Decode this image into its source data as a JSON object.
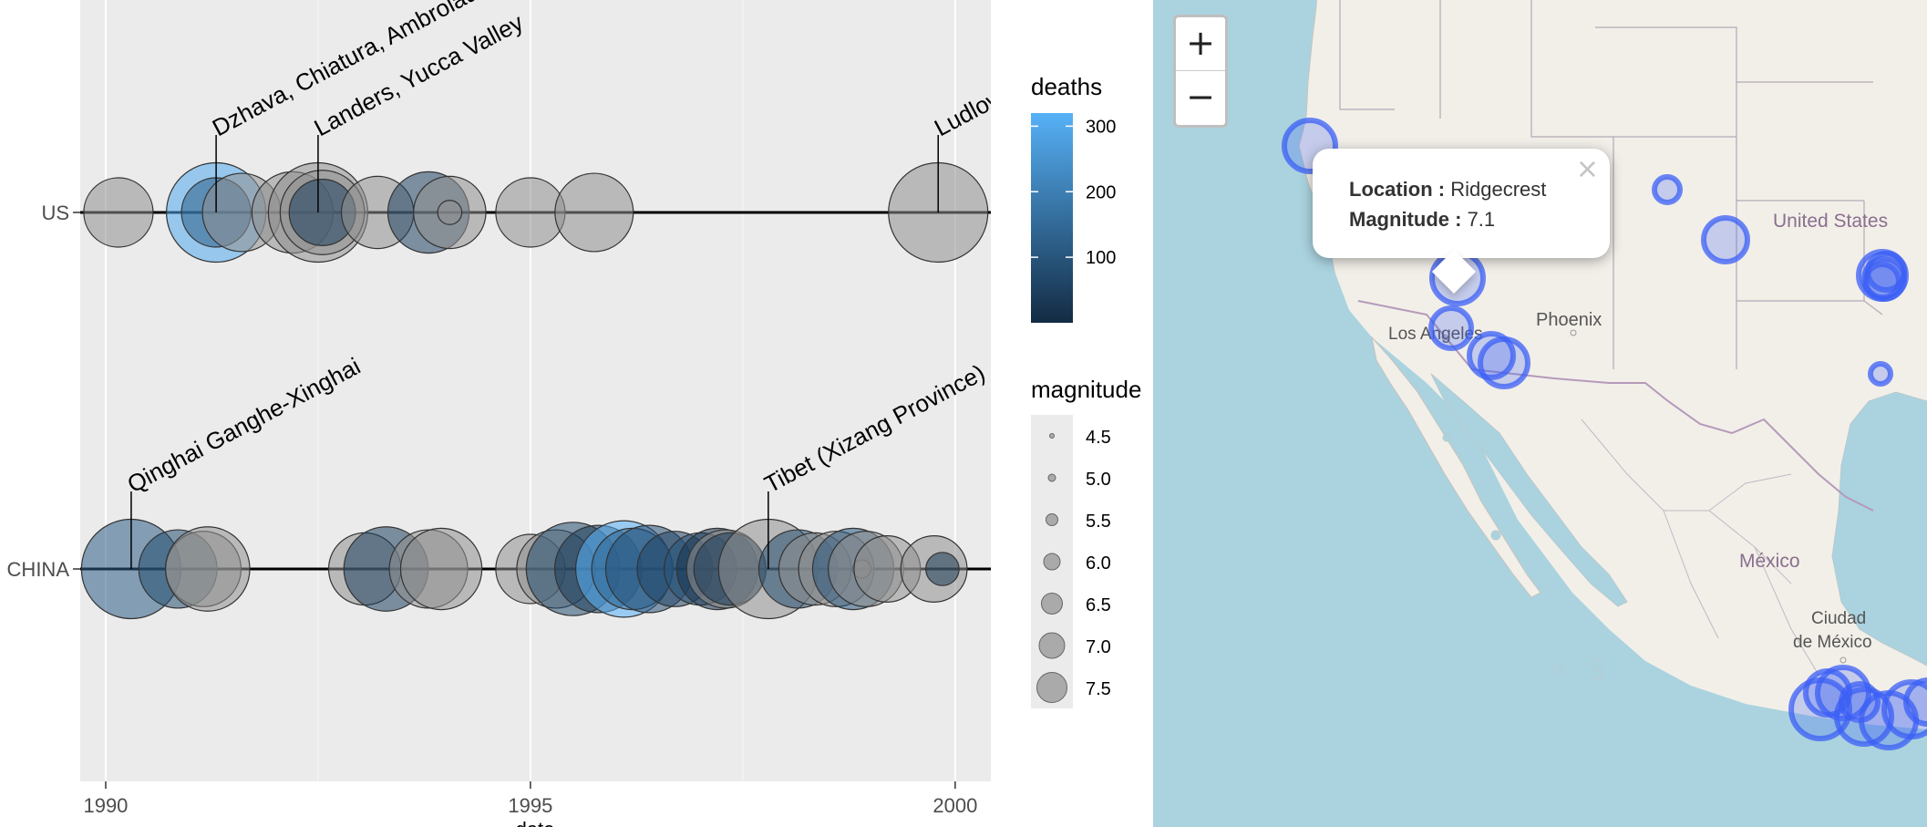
{
  "chart_data": {
    "type": "scatter",
    "title": "",
    "xlabel": "date",
    "ylabel": "",
    "xlim": [
      1989.7,
      2000.42
    ],
    "x_ticks": [
      1990,
      1995,
      2000
    ],
    "x_tick_labels": [
      "1990",
      "1995",
      "2000"
    ],
    "rows": [
      "US",
      "CHINA"
    ],
    "grid": true,
    "legend_position": "right",
    "color_legend": {
      "title": "deaths",
      "range": [
        0,
        320
      ],
      "ticks": [
        100,
        200,
        300
      ],
      "tick_labels": [
        "100",
        "200",
        "300"
      ]
    },
    "size_legend": {
      "title": "magnitude",
      "values": [
        4.5,
        5.0,
        5.5,
        6.0,
        6.5,
        7.0,
        7.5
      ],
      "labels": [
        "4.5",
        "5.0",
        "5.5",
        "6.0",
        "6.5",
        "7.0",
        "7.5"
      ]
    },
    "annotations": [
      {
        "row": "US",
        "x": 1991.3,
        "text": "Dzhava, Chiatura, Ambrolauri"
      },
      {
        "row": "US",
        "x": 1992.5,
        "text": "Landers, Yucca  Valley"
      },
      {
        "row": "US",
        "x": 1999.8,
        "text": "Ludlow"
      },
      {
        "row": "CHINA",
        "x": 1990.3,
        "text": "Qinghai Ganghe-Xinghai"
      },
      {
        "row": "CHINA",
        "x": 1997.8,
        "text": "Tibet (Xizang Province)"
      }
    ],
    "series": [
      {
        "row": "US",
        "points": [
          {
            "x": 1990.15,
            "magnitude": 6.5,
            "deaths": 0
          },
          {
            "x": 1991.3,
            "magnitude": 7.5,
            "deaths": 300
          },
          {
            "x": 1991.3,
            "magnitude": 6.5,
            "deaths": 120
          },
          {
            "x": 1991.6,
            "magnitude": 6.8,
            "deaths": 0
          },
          {
            "x": 1992.2,
            "magnitude": 6.9,
            "deaths": 0
          },
          {
            "x": 1992.5,
            "magnitude": 7.5,
            "deaths": 0
          },
          {
            "x": 1992.55,
            "magnitude": 7.0,
            "deaths": 0
          },
          {
            "x": 1992.55,
            "magnitude": 6.4,
            "deaths": 50
          },
          {
            "x": 1993.2,
            "magnitude": 6.6,
            "deaths": 0
          },
          {
            "x": 1993.8,
            "magnitude": 6.9,
            "deaths": 60
          },
          {
            "x": 1994.05,
            "magnitude": 6.6,
            "deaths": 0
          },
          {
            "x": 1994.05,
            "magnitude": 5.0,
            "deaths": 0
          },
          {
            "x": 1995.0,
            "magnitude": 6.5,
            "deaths": 0
          },
          {
            "x": 1995.75,
            "magnitude": 6.8,
            "deaths": 0
          },
          {
            "x": 1999.8,
            "magnitude": 7.5,
            "deaths": 0
          }
        ]
      },
      {
        "row": "CHINA",
        "points": [
          {
            "x": 1990.3,
            "magnitude": 7.5,
            "deaths": 120
          },
          {
            "x": 1990.85,
            "magnitude": 6.8,
            "deaths": 80
          },
          {
            "x": 1991.15,
            "magnitude": 6.7,
            "deaths": 0
          },
          {
            "x": 1991.2,
            "magnitude": 7.0,
            "deaths": 0
          },
          {
            "x": 1993.05,
            "magnitude": 6.6,
            "deaths": 0
          },
          {
            "x": 1993.3,
            "magnitude": 7.0,
            "deaths": 50
          },
          {
            "x": 1993.8,
            "magnitude": 6.8,
            "deaths": 0
          },
          {
            "x": 1993.95,
            "magnitude": 6.9,
            "deaths": 0
          },
          {
            "x": 1995.0,
            "magnitude": 6.5,
            "deaths": 0
          },
          {
            "x": 1995.3,
            "magnitude": 6.8,
            "deaths": 0
          },
          {
            "x": 1995.5,
            "magnitude": 7.3,
            "deaths": 80
          },
          {
            "x": 1995.8,
            "magnitude": 7.1,
            "deaths": 40
          },
          {
            "x": 1996.1,
            "magnitude": 7.4,
            "deaths": 320
          },
          {
            "x": 1996.2,
            "magnitude": 6.9,
            "deaths": 150
          },
          {
            "x": 1996.4,
            "magnitude": 7.1,
            "deaths": 90
          },
          {
            "x": 1996.7,
            "magnitude": 6.7,
            "deaths": 60
          },
          {
            "x": 1997.0,
            "magnitude": 6.6,
            "deaths": 100
          },
          {
            "x": 1997.2,
            "magnitude": 6.9,
            "deaths": 20
          },
          {
            "x": 1997.3,
            "magnitude": 6.8,
            "deaths": 0
          },
          {
            "x": 1997.35,
            "magnitude": 6.6,
            "deaths": 40
          },
          {
            "x": 1997.8,
            "magnitude": 7.5,
            "deaths": 0
          },
          {
            "x": 1998.15,
            "magnitude": 6.8,
            "deaths": 80
          },
          {
            "x": 1998.35,
            "magnitude": 6.6,
            "deaths": 0
          },
          {
            "x": 1998.6,
            "magnitude": 6.7,
            "deaths": 0
          },
          {
            "x": 1998.8,
            "magnitude": 6.9,
            "deaths": 100
          },
          {
            "x": 1998.9,
            "magnitude": 4.8,
            "deaths": 0
          },
          {
            "x": 1998.95,
            "magnitude": 6.7,
            "deaths": 0
          },
          {
            "x": 1999.2,
            "magnitude": 6.4,
            "deaths": 0
          },
          {
            "x": 1999.75,
            "magnitude": 6.4,
            "deaths": 0
          },
          {
            "x": 1999.85,
            "magnitude": 5.3,
            "deaths": 30
          }
        ]
      }
    ]
  },
  "map": {
    "labels": {
      "united_states": "United States",
      "phoenix": "Phoenix",
      "los_angeles": "Los Angeles",
      "mexico": "México",
      "mexico_city_line1": "Ciudad",
      "mexico_city_line2": "de México"
    },
    "zoom_in_label": "+",
    "zoom_out_label": "−",
    "popup": {
      "location_label": "Location :",
      "location_value": "Ridgecrest",
      "magnitude_label": "Magnitude :",
      "magnitude_value": "7.1",
      "close_label": "×"
    },
    "marker_color": "#3b5ff5"
  }
}
